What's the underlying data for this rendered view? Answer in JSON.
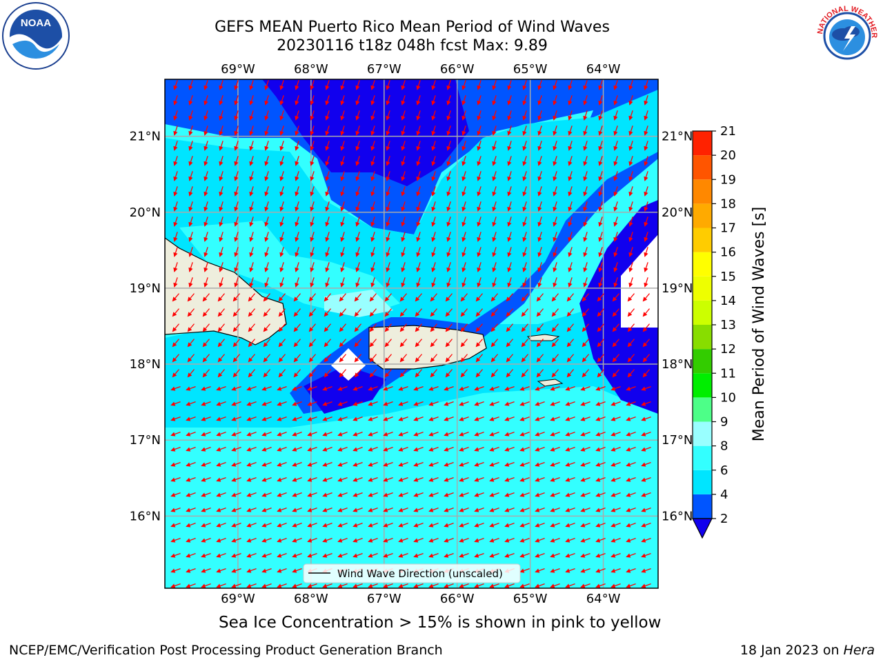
{
  "title": {
    "line1": "GEFS MEAN Puerto Rico Mean Period of Wind Waves",
    "line2": "20230116 t18z 048h fcst   Max: 9.89"
  },
  "map": {
    "lon_labels": [
      "69°W",
      "68°W",
      "67°W",
      "66°W",
      "65°W",
      "64°W"
    ],
    "lat_labels": [
      "21°N",
      "20°N",
      "19°N",
      "18°N",
      "17°N",
      "16°N"
    ],
    "lon_range": [
      -70.0,
      -63.25
    ],
    "lat_range": [
      15.05,
      21.75
    ],
    "legend_label": "Wind Wave Direction (unscaled)",
    "vector_color": "#ff0000",
    "land_color": "#eeeedd"
  },
  "colorbar": {
    "label": "Mean Period of Wind Waves [s]",
    "ticks": [
      "2",
      "4",
      "6",
      "8",
      "9",
      "10",
      "11",
      "12",
      "13",
      "14",
      "15",
      "16",
      "17",
      "18",
      "19",
      "20",
      "21"
    ],
    "colors": [
      "#0055ff",
      "#00e5ff",
      "#33ffff",
      "#99ffff",
      "#4dff88",
      "#00ee00",
      "#33cc00",
      "#88dd00",
      "#ccff00",
      "#eeff00",
      "#ffff00",
      "#ffcc00",
      "#ffaa00",
      "#ff8800",
      "#ff5500",
      "#ff2200"
    ],
    "under_color": "#1100ee"
  },
  "caption": "Sea Ice Concentration > 15% is shown in pink to yellow",
  "credits": {
    "left": "NCEP/EMC/Verification Post Processing Product Generation Branch",
    "right_date": "18 Jan 2023 on ",
    "right_host": "Hera"
  },
  "logos": {
    "noaa_text": "NOAA",
    "nws_text": "NATIONAL WEATHER SERVICE"
  }
}
